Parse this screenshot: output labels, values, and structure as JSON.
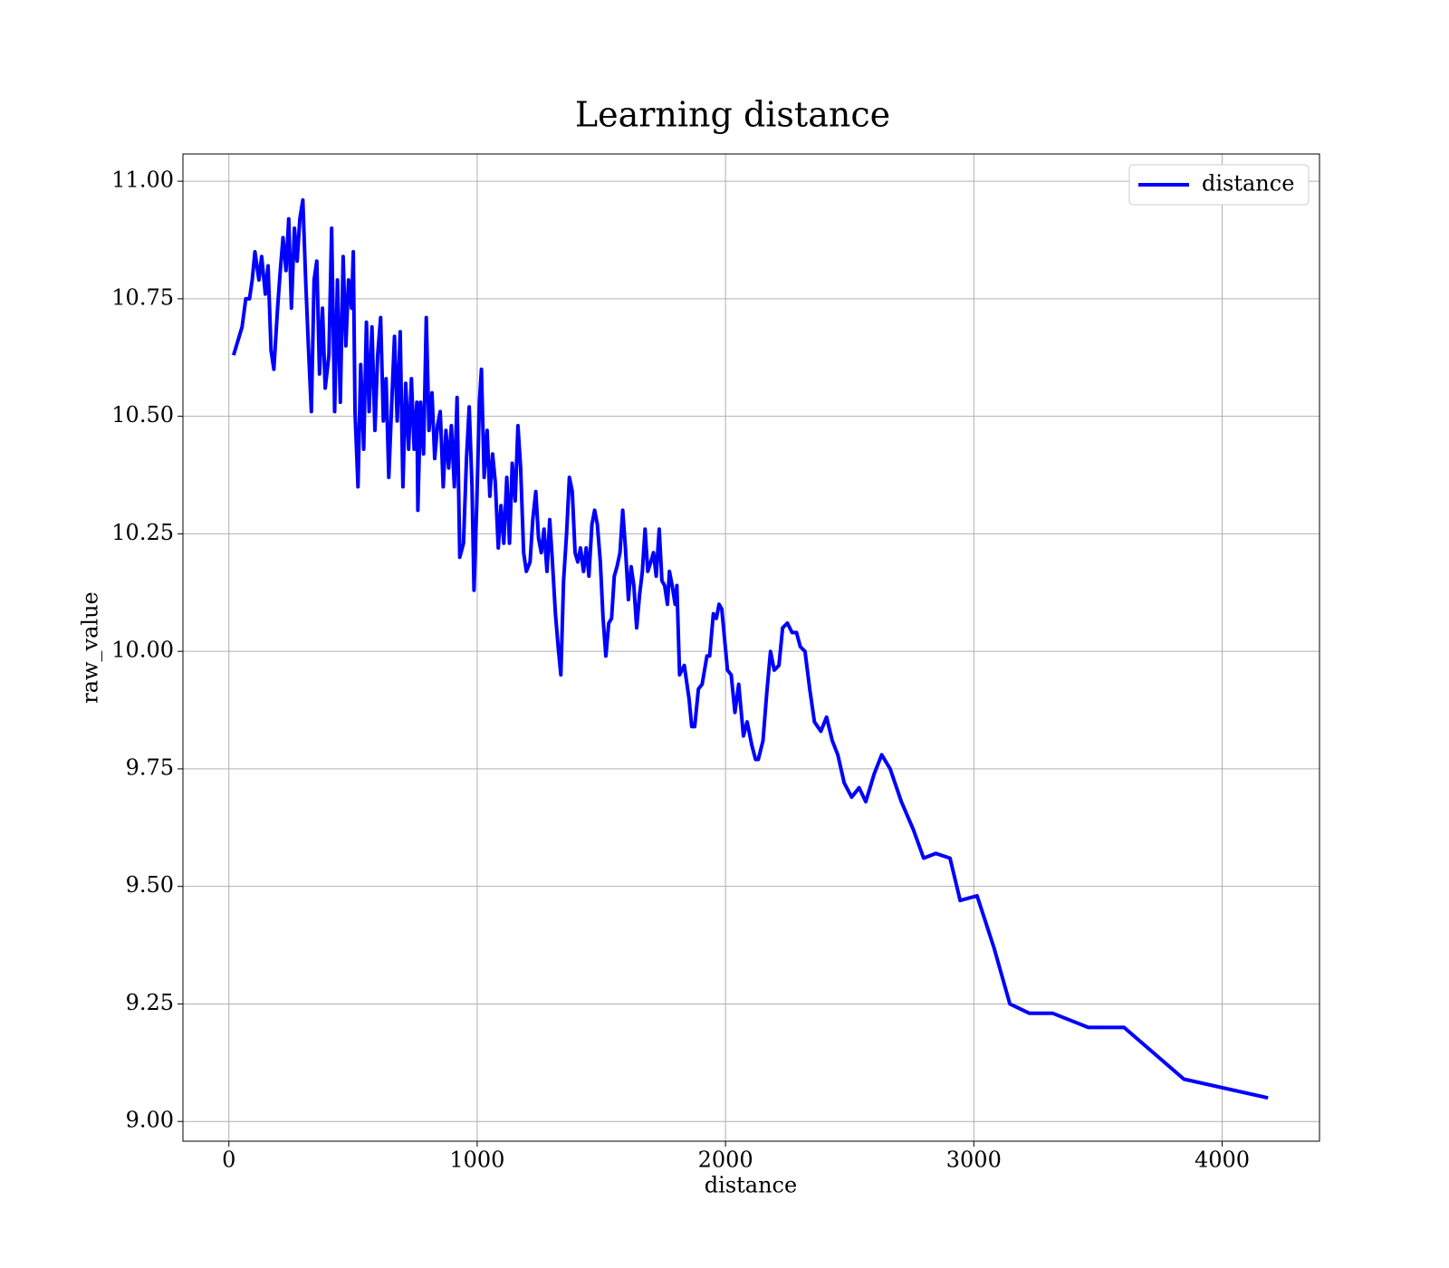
{
  "chart_data": {
    "type": "line",
    "title": "Learning distance",
    "xlabel": "distance",
    "ylabel": "raw_value",
    "x": [
      19,
      53,
      68,
      83,
      94,
      105,
      121,
      132,
      147,
      158,
      170,
      181,
      196,
      207,
      218,
      230,
      241,
      252,
      264,
      275,
      286,
      298,
      309,
      320,
      332,
      343,
      354,
      365,
      377,
      388,
      403,
      414,
      426,
      437,
      449,
      460,
      471,
      482,
      494,
      501,
      508,
      520,
      531,
      543,
      554,
      565,
      576,
      588,
      599,
      611,
      622,
      633,
      644,
      656,
      667,
      678,
      690,
      701,
      712,
      724,
      735,
      746,
      757,
      761,
      772,
      784,
      795,
      806,
      818,
      829,
      840,
      851,
      863,
      874,
      885,
      896,
      908,
      919,
      930,
      945,
      957,
      968,
      979,
      987,
      998,
      1009,
      1017,
      1028,
      1040,
      1051,
      1062,
      1073,
      1085,
      1096,
      1107,
      1119,
      1130,
      1141,
      1153,
      1164,
      1175,
      1187,
      1198,
      1213,
      1224,
      1236,
      1247,
      1258,
      1269,
      1281,
      1292,
      1303,
      1315,
      1326,
      1337,
      1348,
      1360,
      1371,
      1383,
      1394,
      1405,
      1416,
      1428,
      1439,
      1450,
      1462,
      1473,
      1484,
      1496,
      1507,
      1518,
      1530,
      1541,
      1552,
      1563,
      1575,
      1586,
      1597,
      1609,
      1620,
      1631,
      1642,
      1654,
      1665,
      1676,
      1687,
      1699,
      1710,
      1721,
      1733,
      1744,
      1755,
      1766,
      1774,
      1785,
      1797,
      1804,
      1815,
      1834,
      1853,
      1864,
      1876,
      1891,
      1906,
      1925,
      1936,
      1951,
      1963,
      1974,
      1985,
      2008,
      2023,
      2038,
      2053,
      2072,
      2087,
      2106,
      2121,
      2132,
      2151,
      2166,
      2181,
      2196,
      2215,
      2230,
      2249,
      2268,
      2286,
      2301,
      2320,
      2339,
      2358,
      2384,
      2407,
      2430,
      2452,
      2478,
      2508,
      2538,
      2565,
      2599,
      2629,
      2663,
      2708,
      2757,
      2798,
      2847,
      2904,
      2945,
      3013,
      3081,
      3145,
      3224,
      3318,
      3461,
      3605,
      3846,
      4185
    ],
    "series": [
      {
        "name": "distance",
        "color": "#0000ff",
        "values": [
          10.63,
          10.69,
          10.75,
          10.75,
          10.79,
          10.85,
          10.79,
          10.84,
          10.76,
          10.82,
          10.64,
          10.6,
          10.73,
          10.81,
          10.88,
          10.81,
          10.92,
          10.73,
          10.9,
          10.83,
          10.92,
          10.96,
          10.79,
          10.65,
          10.51,
          10.79,
          10.83,
          10.59,
          10.73,
          10.56,
          10.63,
          10.9,
          10.51,
          10.79,
          10.53,
          10.84,
          10.65,
          10.79,
          10.73,
          10.85,
          10.51,
          10.35,
          10.61,
          10.43,
          10.7,
          10.51,
          10.69,
          10.47,
          10.63,
          10.71,
          10.49,
          10.58,
          10.37,
          10.53,
          10.67,
          10.49,
          10.68,
          10.35,
          10.57,
          10.43,
          10.58,
          10.43,
          10.53,
          10.3,
          10.53,
          10.42,
          10.71,
          10.47,
          10.55,
          10.41,
          10.48,
          10.51,
          10.35,
          10.47,
          10.39,
          10.48,
          10.35,
          10.54,
          10.2,
          10.23,
          10.41,
          10.52,
          10.35,
          10.13,
          10.31,
          10.53,
          10.6,
          10.37,
          10.47,
          10.33,
          10.42,
          10.36,
          10.22,
          10.31,
          10.23,
          10.37,
          10.23,
          10.4,
          10.32,
          10.48,
          10.39,
          10.21,
          10.17,
          10.19,
          10.28,
          10.34,
          10.24,
          10.21,
          10.26,
          10.17,
          10.28,
          10.19,
          10.08,
          10.01,
          9.95,
          10.15,
          10.25,
          10.37,
          10.34,
          10.21,
          10.19,
          10.22,
          10.17,
          10.22,
          10.16,
          10.27,
          10.3,
          10.27,
          10.19,
          10.07,
          9.99,
          10.06,
          10.07,
          10.16,
          10.18,
          10.21,
          10.3,
          10.22,
          10.11,
          10.18,
          10.14,
          10.05,
          10.12,
          10.17,
          10.26,
          10.17,
          10.19,
          10.21,
          10.16,
          10.26,
          10.15,
          10.14,
          10.1,
          10.17,
          10.14,
          10.1,
          10.14,
          9.95,
          9.97,
          9.9,
          9.84,
          9.84,
          9.92,
          9.93,
          9.99,
          9.99,
          10.08,
          10.07,
          10.1,
          10.09,
          9.96,
          9.95,
          9.87,
          9.93,
          9.82,
          9.85,
          9.8,
          9.77,
          9.77,
          9.81,
          9.91,
          10.0,
          9.96,
          9.97,
          10.05,
          10.06,
          10.04,
          10.04,
          10.01,
          10.0,
          9.92,
          9.85,
          9.83,
          9.86,
          9.81,
          9.78,
          9.72,
          9.69,
          9.71,
          9.68,
          9.74,
          9.78,
          9.75,
          9.68,
          9.62,
          9.56,
          9.57,
          9.56,
          9.47,
          9.48,
          9.37,
          9.25,
          9.23,
          9.23,
          9.2,
          9.2,
          9.09,
          9.05
        ]
      }
    ],
    "xlim": [
      -185,
      4392
    ],
    "ylim": [
      8.958,
      11.058
    ],
    "xticks": [
      0,
      1000,
      2000,
      3000,
      4000
    ],
    "yticks": [
      {
        "value": 9,
        "label": "9.00"
      },
      9.25,
      {
        "value": 9.5,
        "label": "9.50"
      },
      9.75,
      {
        "value": 10,
        "label": "10.00"
      },
      10.25,
      {
        "value": 10.5,
        "label": "10.50"
      },
      10.75,
      {
        "value": 11,
        "label": "11.00"
      }
    ],
    "grid": true,
    "legend": "upper right"
  }
}
